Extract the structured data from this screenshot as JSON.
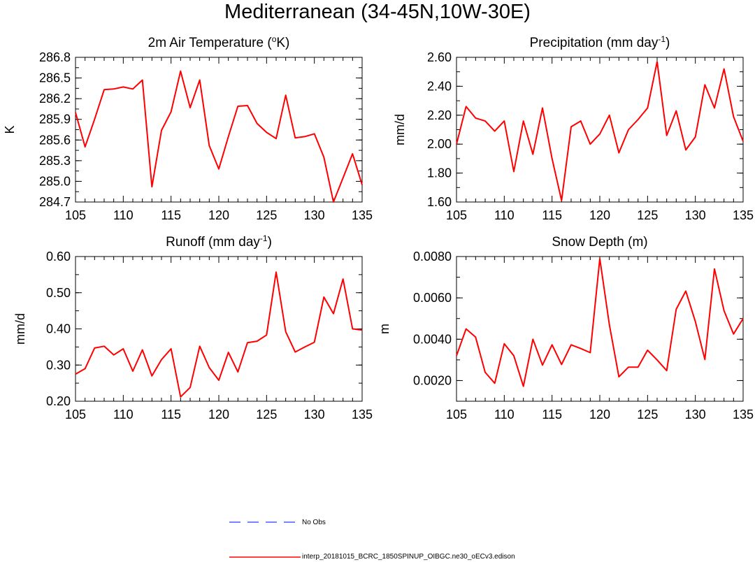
{
  "page_title": "Mediterranean (34-45N,10W-30E)",
  "colors": {
    "model": "#ff0000",
    "obs": "#4a5cff",
    "axis": "#000000"
  },
  "legend": {
    "obs_label": "No Obs",
    "model_label": "interp_20181015_BCRC_1850SPINUP_OIBGC.ne30_oECv3.edison"
  },
  "chart_data": [
    {
      "type": "line",
      "title": "2m Air Temperature (°K)",
      "title_main": "2m Air Temperature (",
      "title_sup": "o",
      "title_end": "K)",
      "ylabel": "K",
      "xlim": [
        105,
        135
      ],
      "ylim": [
        284.7,
        286.8
      ],
      "x_ticks": [
        "105",
        "110",
        "115",
        "120",
        "125",
        "130",
        "135"
      ],
      "y_ticks": [
        "284.7",
        "285.0",
        "285.3",
        "285.6",
        "285.9",
        "286.2",
        "286.5",
        "286.8"
      ],
      "x": [
        105,
        106,
        107,
        108,
        109,
        110,
        111,
        112,
        113,
        114,
        115,
        116,
        117,
        118,
        119,
        120,
        121,
        122,
        123,
        124,
        125,
        126,
        127,
        128,
        129,
        130,
        131,
        132,
        133,
        134,
        135
      ],
      "series": [
        {
          "values": [
            286.0,
            285.5,
            285.9,
            286.33,
            286.34,
            286.37,
            286.34,
            286.47,
            284.92,
            285.74,
            286.01,
            286.6,
            286.07,
            286.47,
            285.52,
            285.18,
            285.65,
            286.09,
            286.1,
            285.84,
            285.71,
            285.62,
            286.25,
            285.63,
            285.65,
            285.69,
            285.35,
            284.7,
            285.05,
            285.4,
            284.95
          ]
        }
      ]
    },
    {
      "type": "line",
      "title": "Precipitation (mm day-1)",
      "title_main": "Precipitation (mm day",
      "title_sup": "-1",
      "title_end": ")",
      "ylabel": "mm/d",
      "xlim": [
        105,
        135
      ],
      "ylim": [
        1.6,
        2.6
      ],
      "x_ticks": [
        "105",
        "110",
        "115",
        "120",
        "125",
        "130",
        "135"
      ],
      "y_ticks": [
        "1.60",
        "1.80",
        "2.00",
        "2.20",
        "2.40",
        "2.60"
      ],
      "x": [
        105,
        106,
        107,
        108,
        109,
        110,
        111,
        112,
        113,
        114,
        115,
        116,
        117,
        118,
        119,
        120,
        121,
        122,
        123,
        124,
        125,
        126,
        127,
        128,
        129,
        130,
        131,
        132,
        133,
        134,
        135
      ],
      "series": [
        {
          "values": [
            2.0,
            2.26,
            2.18,
            2.16,
            2.09,
            2.16,
            1.81,
            2.16,
            1.93,
            2.25,
            1.9,
            1.61,
            2.12,
            2.16,
            2.0,
            2.07,
            2.2,
            1.94,
            2.1,
            2.17,
            2.25,
            2.57,
            2.06,
            2.23,
            1.96,
            2.05,
            2.41,
            2.25,
            2.52,
            2.19,
            2.02
          ]
        }
      ]
    },
    {
      "type": "line",
      "title": "Runoff (mm day-1)",
      "title_main": "Runoff (mm day",
      "title_sup": "-1",
      "title_end": ")",
      "ylabel": "mm/d",
      "xlim": [
        105,
        135
      ],
      "ylim": [
        0.2,
        0.6
      ],
      "x_ticks": [
        "105",
        "110",
        "115",
        "120",
        "125",
        "130",
        "135"
      ],
      "y_ticks": [
        "0.20",
        "0.30",
        "0.40",
        "0.50",
        "0.60"
      ],
      "x": [
        105,
        106,
        107,
        108,
        109,
        110,
        111,
        112,
        113,
        114,
        115,
        116,
        117,
        118,
        119,
        120,
        121,
        122,
        123,
        124,
        125,
        126,
        127,
        128,
        129,
        130,
        131,
        132,
        133,
        134,
        135
      ],
      "series": [
        {
          "values": [
            0.275,
            0.29,
            0.347,
            0.352,
            0.328,
            0.345,
            0.283,
            0.342,
            0.27,
            0.315,
            0.345,
            0.212,
            0.238,
            0.352,
            0.293,
            0.258,
            0.335,
            0.281,
            0.362,
            0.366,
            0.383,
            0.557,
            0.392,
            0.336,
            0.35,
            0.363,
            0.488,
            0.442,
            0.538,
            0.4,
            0.397
          ]
        }
      ]
    },
    {
      "type": "line",
      "title": "Snow Depth (m)",
      "title_main": "Snow Depth (m)",
      "title_sup": "",
      "title_end": "",
      "ylabel": "m",
      "xlim": [
        105,
        135
      ],
      "ylim": [
        0.001,
        0.008
      ],
      "x_ticks": [
        "105",
        "110",
        "115",
        "120",
        "125",
        "130",
        "135"
      ],
      "y_ticks": [
        "0.0020",
        "0.0040",
        "0.0060",
        "0.0080"
      ],
      "y_tick_values": [
        0.002,
        0.004,
        0.006,
        0.008
      ],
      "x": [
        105,
        106,
        107,
        108,
        109,
        110,
        111,
        112,
        113,
        114,
        115,
        116,
        117,
        118,
        119,
        120,
        121,
        122,
        123,
        124,
        125,
        126,
        127,
        128,
        129,
        130,
        131,
        132,
        133,
        134,
        135
      ],
      "series": [
        {
          "values": [
            0.0032,
            0.0045,
            0.0041,
            0.0024,
            0.00187,
            0.00378,
            0.0032,
            0.00172,
            0.004,
            0.00275,
            0.00373,
            0.00278,
            0.00373,
            0.00355,
            0.00335,
            0.0079,
            0.0047,
            0.00218,
            0.00265,
            0.00265,
            0.00347,
            0.003,
            0.00248,
            0.00545,
            0.00633,
            0.00485,
            0.00302,
            0.0074,
            0.00538,
            0.00425,
            0.005
          ]
        }
      ]
    }
  ]
}
